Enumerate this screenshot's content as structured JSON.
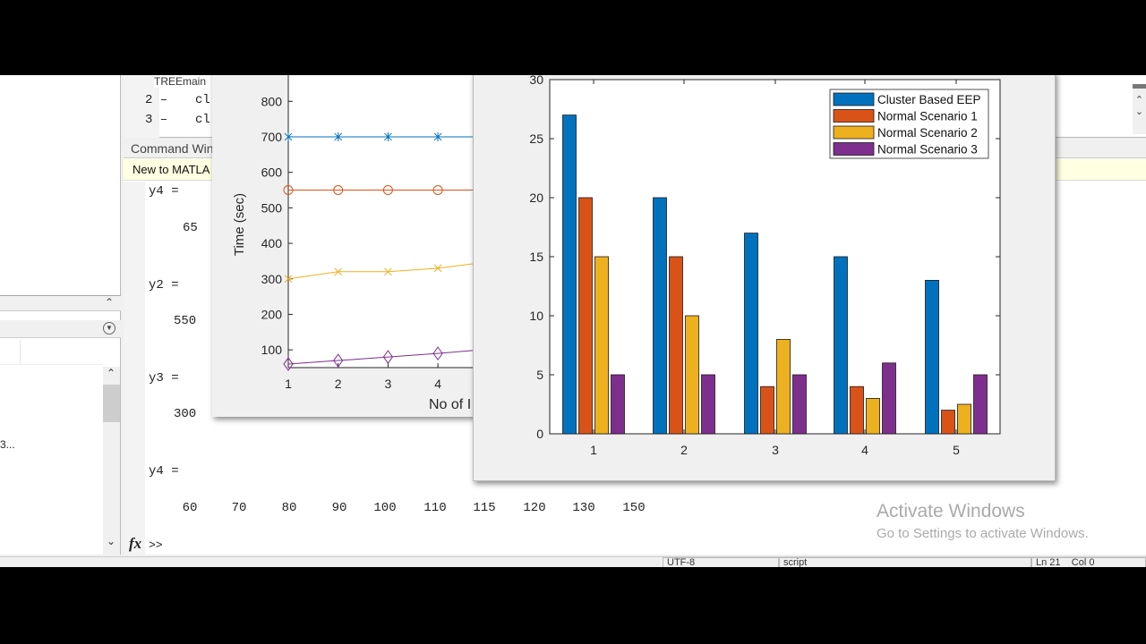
{
  "editor": {
    "tab_label": "TREEmain",
    "lines": [
      {
        "num": "2",
        "code": "cl"
      },
      {
        "num": "3",
        "code": "cl"
      }
    ]
  },
  "command_window": {
    "title": "Command Win",
    "banner": "New to MATLA",
    "output": [
      {
        "label": "y4 =",
        "value": "65"
      },
      {
        "label": "y2 =",
        "value": "550"
      },
      {
        "label": "y3 =",
        "value": "300"
      },
      {
        "label": "y4 =",
        "values": [
          "60",
          "70",
          "80",
          "90",
          "100",
          "110",
          "115",
          "120",
          "130",
          "150"
        ]
      }
    ],
    "prompt": ">>",
    "fx": "fx"
  },
  "left_panel": {
    "truncated_item": "3..."
  },
  "status_bar": {
    "encoding": "UTF-8",
    "type": "script",
    "ln": "Ln 21",
    "col": "Col 0"
  },
  "watermark": {
    "title": "Activate Windows",
    "subtitle": "Go to Settings to activate Windows."
  },
  "chart_data": [
    {
      "type": "line",
      "ylabel": "Time (sec)",
      "xlabel": "No of I",
      "x": [
        1,
        2,
        3,
        4
      ],
      "xticks": [
        "1",
        "2",
        "3",
        "4"
      ],
      "yticks": [
        "100",
        "200",
        "300",
        "400",
        "500",
        "600",
        "700",
        "800"
      ],
      "ylim": [
        50,
        900
      ],
      "series": [
        {
          "values": [
            700,
            700,
            700,
            700
          ],
          "color": "#0072bd",
          "marker": "asterisk"
        },
        {
          "values": [
            550,
            550,
            550,
            550
          ],
          "color": "#d95319",
          "marker": "circle"
        },
        {
          "values": [
            300,
            320,
            320,
            330
          ],
          "color": "#edb120",
          "marker": "x"
        },
        {
          "values": [
            60,
            70,
            80,
            90
          ],
          "color": "#7e2f8e",
          "marker": "diamond"
        }
      ]
    },
    {
      "type": "bar",
      "categories": [
        "1",
        "2",
        "3",
        "4",
        "5"
      ],
      "yticks": [
        "0",
        "5",
        "10",
        "15",
        "20",
        "25",
        "30"
      ],
      "ylim": [
        0,
        30
      ],
      "legend_position": "top-right",
      "series": [
        {
          "name": "Cluster Based EEP",
          "values": [
            27,
            20,
            17,
            15,
            13
          ],
          "color": "#0072bd"
        },
        {
          "name": "Normal Scenario 1",
          "values": [
            20,
            15,
            4,
            4,
            2
          ],
          "color": "#d95319"
        },
        {
          "name": "Normal Scenario 2",
          "values": [
            15,
            10,
            8,
            3,
            2.5
          ],
          "color": "#edb120"
        },
        {
          "name": "Normal Scenario 3",
          "values": [
            5,
            5,
            5,
            6,
            5
          ],
          "color": "#7e2f8e"
        }
      ]
    }
  ]
}
